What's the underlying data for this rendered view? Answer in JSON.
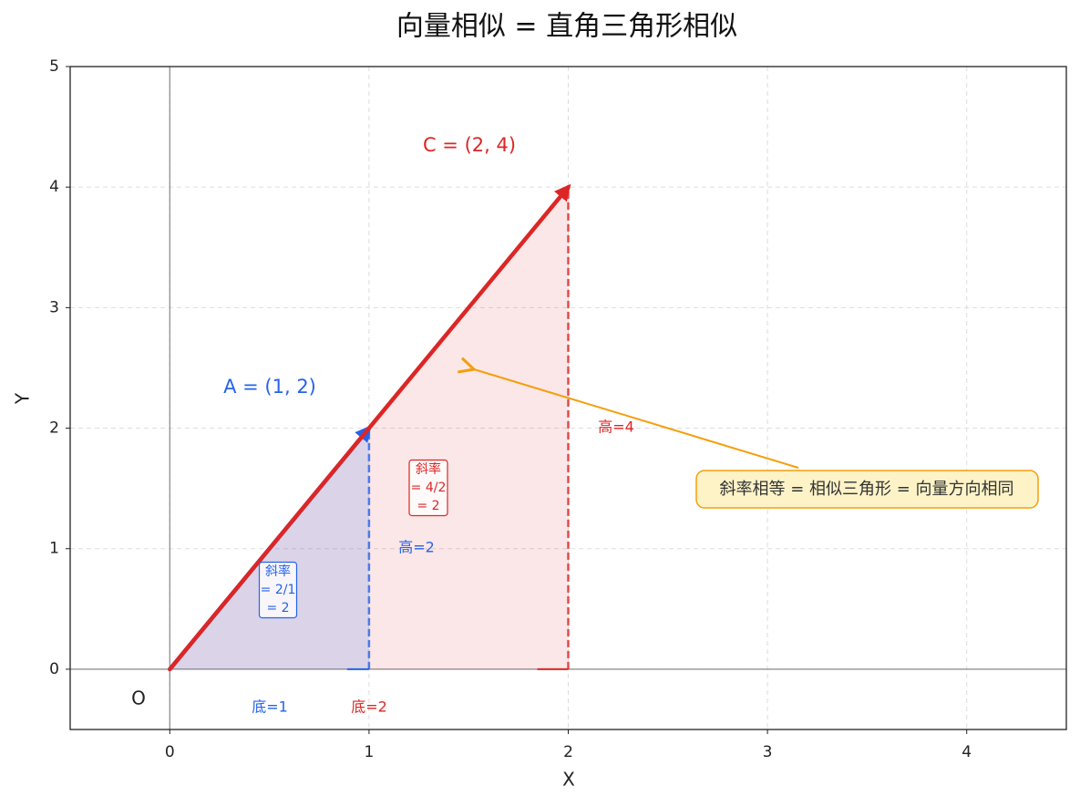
{
  "chart_data": {
    "type": "vector",
    "title": "向量相似 = 直角三角形相似",
    "xlabel": "X",
    "ylabel": "Y",
    "xlim": [
      -0.5,
      4.5
    ],
    "ylim": [
      -0.5,
      5
    ],
    "xticks": [
      0,
      1,
      2,
      3,
      4
    ],
    "yticks": [
      0,
      1,
      2,
      3,
      4,
      5
    ],
    "grid": true,
    "origin_label": "O",
    "vectors": [
      {
        "name": "A = (1, 2)",
        "color": "#2563eb",
        "x": 1,
        "y": 2,
        "base_label": "底=1",
        "height_label": "高=2",
        "slope_label": [
          "斜率",
          "= 2/1",
          "= 2"
        ]
      },
      {
        "name": "C = (2, 4)",
        "color": "#dc2626",
        "x": 2,
        "y": 4,
        "base_label": "底=2",
        "height_label": "高=4",
        "slope_label": [
          "斜率",
          "= 4/2",
          "= 2"
        ]
      }
    ],
    "annotation": "斜率相等 = 相似三角形 = 向量方向相同"
  }
}
